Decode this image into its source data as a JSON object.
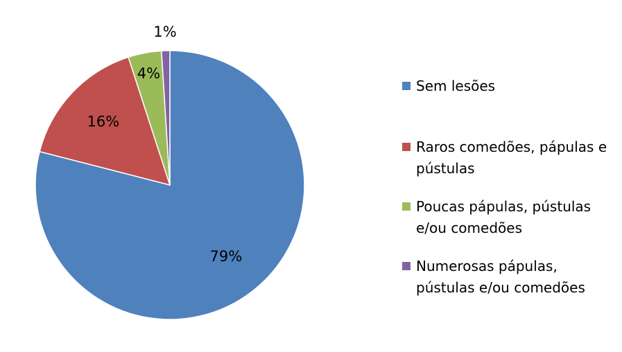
{
  "chart_data": {
    "type": "pie",
    "categories": [
      "Sem lesões",
      "Raros comedões, pápulas e pústulas",
      "Poucas pápulas, pústulas e/ou comedões",
      "Numerosas pápulas, pústulas e/ou comedões"
    ],
    "values": [
      79,
      16,
      4,
      1
    ],
    "value_labels": [
      "79%",
      "16%",
      "4%",
      "1%"
    ],
    "colors": [
      "#4F81BD",
      "#C0504D",
      "#9BBB59",
      "#8064A2"
    ]
  }
}
